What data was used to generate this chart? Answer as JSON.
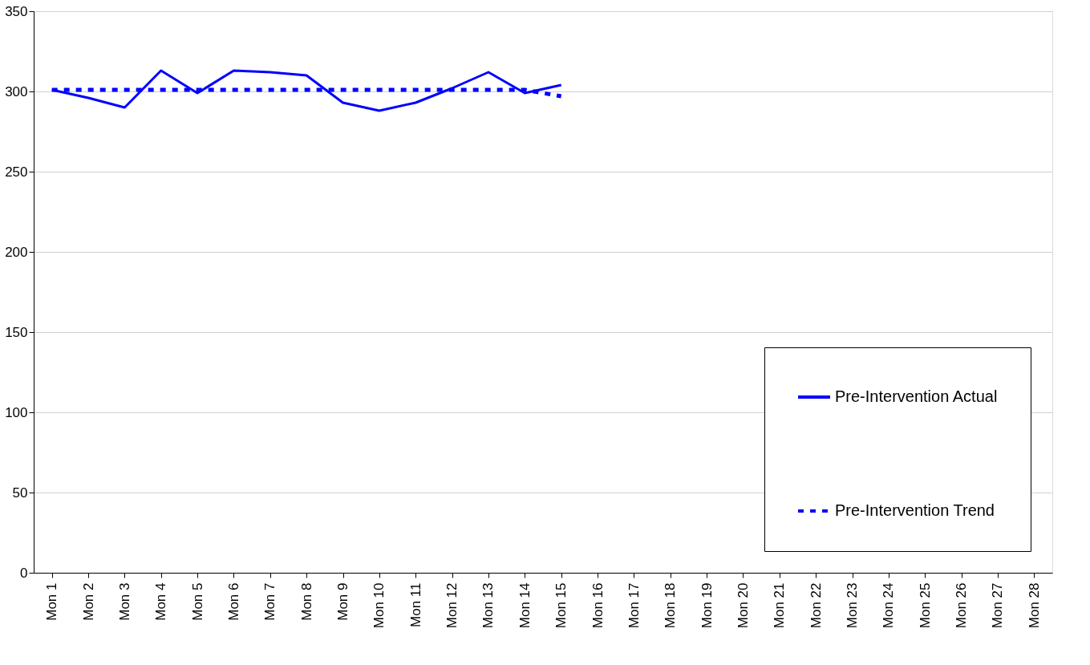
{
  "chart_data": {
    "type": "line",
    "categories": [
      "Mon 1",
      "Mon 2",
      "Mon 3",
      "Mon 4",
      "Mon 5",
      "Mon 6",
      "Mon 7",
      "Mon 8",
      "Mon 9",
      "Mon 10",
      "Mon 11",
      "Mon 12",
      "Mon 13",
      "Mon 14",
      "Mon 15",
      "Mon 16",
      "Mon 17",
      "Mon 18",
      "Mon 19",
      "Mon 20",
      "Mon 21",
      "Mon 22",
      "Mon 23",
      "Mon 24",
      "Mon 25",
      "Mon 26",
      "Mon 27",
      "Mon 28"
    ],
    "series": [
      {
        "name": "Pre-Intervention Actual",
        "color": "#0000ff",
        "line_style": "solid",
        "values": [
          301,
          296,
          290,
          313,
          299,
          313,
          312,
          310,
          293,
          288,
          293,
          302,
          312,
          299,
          304,
          null,
          null,
          null,
          null,
          null,
          null,
          null,
          null,
          null,
          null,
          null,
          null,
          null
        ]
      },
      {
        "name": "Pre-Intervention Trend",
        "color": "#0000ff",
        "line_style": "dashed",
        "values": [
          301,
          301,
          301,
          301,
          301,
          301,
          301,
          301,
          301,
          301,
          301,
          301,
          301,
          301,
          297,
          null,
          null,
          null,
          null,
          null,
          null,
          null,
          null,
          null,
          null,
          null,
          null,
          null
        ]
      }
    ],
    "ylim": [
      0,
      350
    ],
    "yticks": [
      0,
      50,
      100,
      150,
      200,
      250,
      300,
      350
    ],
    "grid": "y",
    "legend": "bottom right",
    "marker": "none"
  }
}
